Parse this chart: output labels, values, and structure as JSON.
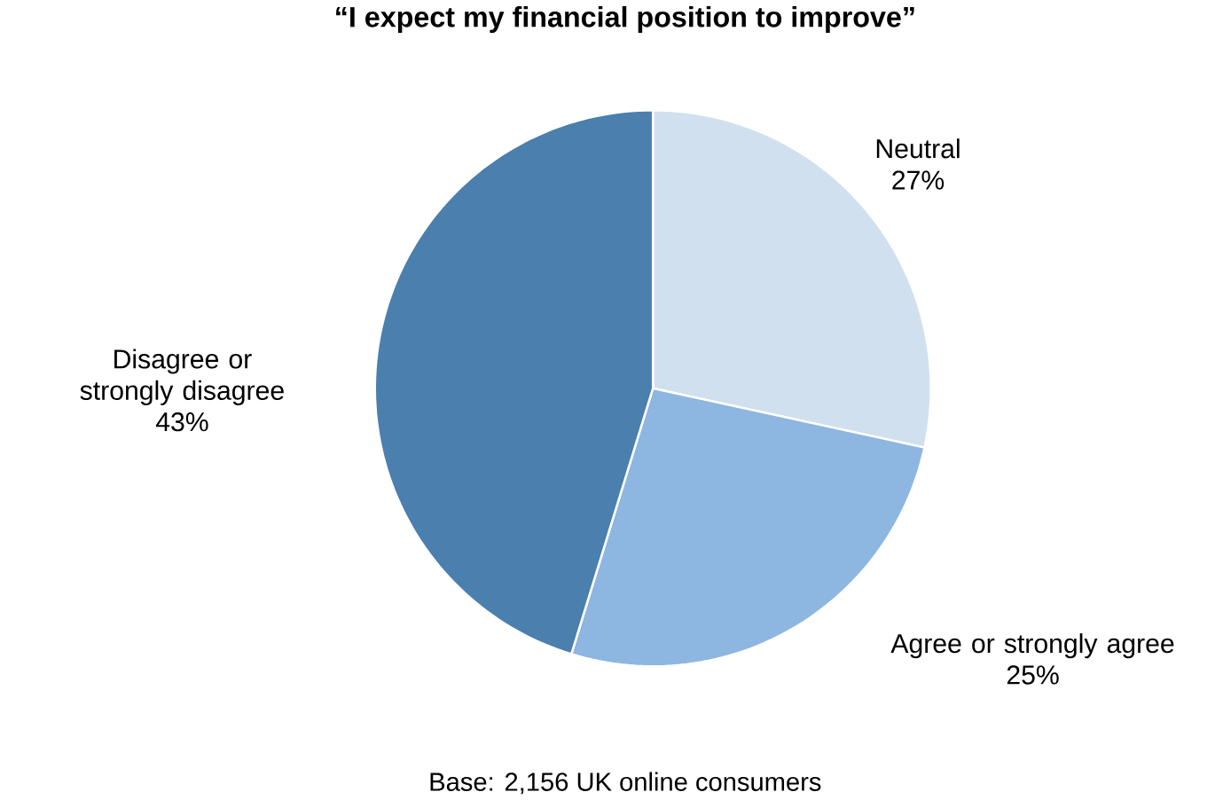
{
  "chart_data": {
    "type": "pie",
    "title": "“I expect my financial position to improve”",
    "categories": [
      "Neutral",
      "Agree or strongly agree",
      "Disagree or strongly disagree"
    ],
    "values": [
      27,
      25,
      43
    ],
    "value_labels": [
      "27%",
      "25%",
      "43%"
    ],
    "colors": [
      "#d0e0ef",
      "#8db6e0",
      "#4a7fae"
    ],
    "annotations": [
      "Base: 2,156 UK online consumers"
    ]
  }
}
